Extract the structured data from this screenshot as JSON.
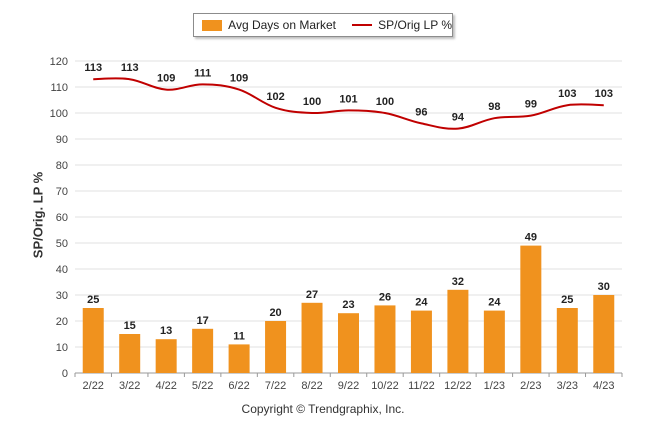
{
  "chart_data": {
    "type": "bar+line",
    "categories": [
      "2/22",
      "3/22",
      "4/22",
      "5/22",
      "6/22",
      "7/22",
      "8/22",
      "9/22",
      "10/22",
      "11/22",
      "12/22",
      "1/23",
      "2/23",
      "3/23",
      "4/23"
    ],
    "series": [
      {
        "name": "Avg Days on Market",
        "type": "bar",
        "values": [
          25,
          15,
          13,
          17,
          11,
          20,
          27,
          23,
          26,
          24,
          32,
          24,
          49,
          25,
          30
        ]
      },
      {
        "name": "SP/Orig LP %",
        "type": "line",
        "values": [
          113,
          113,
          109,
          111,
          109,
          102,
          100,
          101,
          100,
          96,
          94,
          98,
          99,
          103,
          103
        ]
      }
    ],
    "ylabel": "SP/Orig. LP %",
    "ylim": [
      0,
      120
    ],
    "yticks": [
      0,
      10,
      20,
      30,
      40,
      50,
      60,
      70,
      80,
      90,
      100,
      110,
      120
    ],
    "legend": "top-center",
    "grid": true,
    "colors": {
      "bar": "#f0921e",
      "line": "#c00000"
    }
  },
  "footer": {
    "copyright": "Copyright © Trendgraphix, Inc."
  }
}
